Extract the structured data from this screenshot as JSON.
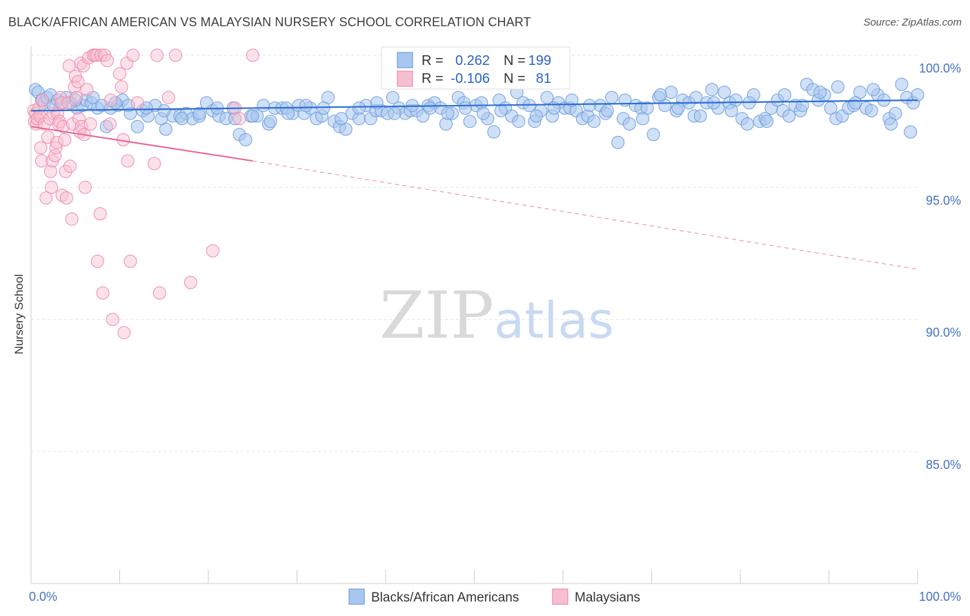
{
  "chart_data": {
    "type": "scatter",
    "title": "BLACK/AFRICAN AMERICAN VS MALAYSIAN NURSERY SCHOOL CORRELATION CHART",
    "source": "Source: ZipAtlas.com",
    "ylabel": "Nursery School",
    "xlabel": "",
    "xlim": [
      0,
      100
    ],
    "ylim": [
      80.0,
      100.8
    ],
    "y_ticks": [
      85.0,
      90.0,
      95.0,
      100.0
    ],
    "y_tick_labels": [
      "85.0%",
      "90.0%",
      "95.0%",
      "100.0%"
    ],
    "x_tick_labels": [
      "0.0%",
      "100.0%"
    ],
    "watermark": {
      "zip": "ZIP",
      "atlas": "atlas"
    },
    "legend": {
      "rows": [
        {
          "r_label": "R =",
          "r_value": "0.262",
          "n_label": "N =",
          "n_value": "199"
        },
        {
          "r_label": "R =",
          "r_value": "-0.106",
          "n_label": "N =",
          "n_value": "81"
        }
      ]
    },
    "series": [
      {
        "name": "Blacks/African Americans",
        "color": "#6f9fe0",
        "fill": "#a9c6ef",
        "line_color": "#2e6fd0",
        "trend": {
          "x": [
            0,
            100
          ],
          "y": [
            97.9,
            98.3
          ]
        },
        "points": [
          [
            0.5,
            98.7
          ],
          [
            0.8,
            98.6
          ],
          [
            1.2,
            98.3
          ],
          [
            1.5,
            98.2
          ],
          [
            1.8,
            98.4
          ],
          [
            2.2,
            98.5
          ],
          [
            2.5,
            98.1
          ],
          [
            3.0,
            98.3
          ],
          [
            3.5,
            98.2
          ],
          [
            4.0,
            98.4
          ],
          [
            4.5,
            98.2
          ],
          [
            5.2,
            98.0
          ],
          [
            5.8,
            98.1
          ],
          [
            6.2,
            98.3
          ],
          [
            6.8,
            98.2
          ],
          [
            7.5,
            98.0
          ],
          [
            8.0,
            98.1
          ],
          [
            8.5,
            97.3
          ],
          [
            9.0,
            98.0
          ],
          [
            9.8,
            98.1
          ],
          [
            10.3,
            98.3
          ],
          [
            11.2,
            97.8
          ],
          [
            12.0,
            97.3
          ],
          [
            12.6,
            97.9
          ],
          [
            13.2,
            97.7
          ],
          [
            14.0,
            98.1
          ],
          [
            14.7,
            97.6
          ],
          [
            15.2,
            97.2
          ],
          [
            16.0,
            97.7
          ],
          [
            16.8,
            97.7
          ],
          [
            17.5,
            97.8
          ],
          [
            18.2,
            97.6
          ],
          [
            19.0,
            97.7
          ],
          [
            19.8,
            98.2
          ],
          [
            20.5,
            97.9
          ],
          [
            21.2,
            97.7
          ],
          [
            22.0,
            97.6
          ],
          [
            22.8,
            98.0
          ],
          [
            23.5,
            97.0
          ],
          [
            24.2,
            96.8
          ],
          [
            24.8,
            97.7
          ],
          [
            25.5,
            97.7
          ],
          [
            26.2,
            98.1
          ],
          [
            26.8,
            97.4
          ],
          [
            27.5,
            98.0
          ],
          [
            28.3,
            98.0
          ],
          [
            28.8,
            98.0
          ],
          [
            29.5,
            97.8
          ],
          [
            30.2,
            98.1
          ],
          [
            30.8,
            97.8
          ],
          [
            31.5,
            98.0
          ],
          [
            32.2,
            97.6
          ],
          [
            32.8,
            97.7
          ],
          [
            33.5,
            98.4
          ],
          [
            34.2,
            97.5
          ],
          [
            34.8,
            97.3
          ],
          [
            35.5,
            97.2
          ],
          [
            36.2,
            97.8
          ],
          [
            37.0,
            97.6
          ],
          [
            37.8,
            98.1
          ],
          [
            38.3,
            97.6
          ],
          [
            38.9,
            97.9
          ],
          [
            39.5,
            97.9
          ],
          [
            40.2,
            97.8
          ],
          [
            40.8,
            98.4
          ],
          [
            41.5,
            98.0
          ],
          [
            42.2,
            97.8
          ],
          [
            42.8,
            97.9
          ],
          [
            43.5,
            97.9
          ],
          [
            44.2,
            97.7
          ],
          [
            44.8,
            98.1
          ],
          [
            45.5,
            98.2
          ],
          [
            46.2,
            98.0
          ],
          [
            46.8,
            97.4
          ],
          [
            47.5,
            97.8
          ],
          [
            48.2,
            98.4
          ],
          [
            48.8,
            98.2
          ],
          [
            49.5,
            97.5
          ],
          [
            50.2,
            98.1
          ],
          [
            50.8,
            98.2
          ],
          [
            51.5,
            97.6
          ],
          [
            52.2,
            97.1
          ],
          [
            52.8,
            98.3
          ],
          [
            53.5,
            98.0
          ],
          [
            54.2,
            97.7
          ],
          [
            54.8,
            98.6
          ],
          [
            55.5,
            98.2
          ],
          [
            56.2,
            98.1
          ],
          [
            56.8,
            97.5
          ],
          [
            57.5,
            97.9
          ],
          [
            58.2,
            98.4
          ],
          [
            58.8,
            97.7
          ],
          [
            59.5,
            98.2
          ],
          [
            60.2,
            98.0
          ],
          [
            60.8,
            98.0
          ],
          [
            61.5,
            97.9
          ],
          [
            62.2,
            97.6
          ],
          [
            62.8,
            97.7
          ],
          [
            63.5,
            97.5
          ],
          [
            64.2,
            98.1
          ],
          [
            64.8,
            97.8
          ],
          [
            65.5,
            98.4
          ],
          [
            66.2,
            96.7
          ],
          [
            66.8,
            97.6
          ],
          [
            67.5,
            97.4
          ],
          [
            68.2,
            98.1
          ],
          [
            68.8,
            98.0
          ],
          [
            69.5,
            98.0
          ],
          [
            70.2,
            97.0
          ],
          [
            70.8,
            98.4
          ],
          [
            71.5,
            98.1
          ],
          [
            72.2,
            98.6
          ],
          [
            72.8,
            97.9
          ],
          [
            73.5,
            98.3
          ],
          [
            74.2,
            98.2
          ],
          [
            74.8,
            97.7
          ],
          [
            75.5,
            97.7
          ],
          [
            76.2,
            98.2
          ],
          [
            76.8,
            98.7
          ],
          [
            77.5,
            98.0
          ],
          [
            78.2,
            98.6
          ],
          [
            78.8,
            98.2
          ],
          [
            79.5,
            98.3
          ],
          [
            80.2,
            97.6
          ],
          [
            80.8,
            97.4
          ],
          [
            81.5,
            98.5
          ],
          [
            82.2,
            97.5
          ],
          [
            82.8,
            97.6
          ],
          [
            83.5,
            98.0
          ],
          [
            84.2,
            98.3
          ],
          [
            84.8,
            97.9
          ],
          [
            85.5,
            97.7
          ],
          [
            86.2,
            98.1
          ],
          [
            86.8,
            97.9
          ],
          [
            87.5,
            98.9
          ],
          [
            88.2,
            98.7
          ],
          [
            88.8,
            98.3
          ],
          [
            89.5,
            98.5
          ],
          [
            90.2,
            98.0
          ],
          [
            90.8,
            97.6
          ],
          [
            91.5,
            97.7
          ],
          [
            92.2,
            98.0
          ],
          [
            92.8,
            98.1
          ],
          [
            93.5,
            98.6
          ],
          [
            94.2,
            98.0
          ],
          [
            94.8,
            97.9
          ],
          [
            95.5,
            98.5
          ],
          [
            96.2,
            98.3
          ],
          [
            96.8,
            97.6
          ],
          [
            97.5,
            97.8
          ],
          [
            98.2,
            98.9
          ],
          [
            98.8,
            98.4
          ],
          [
            99.5,
            98.2
          ],
          [
            100.0,
            98.5
          ],
          [
            99.2,
            97.1
          ],
          [
            97.0,
            97.4
          ],
          [
            95.0,
            98.7
          ],
          [
            93.0,
            98.2
          ],
          [
            91.0,
            98.8
          ],
          [
            89.0,
            98.6
          ],
          [
            87.0,
            98.1
          ],
          [
            85.0,
            98.5
          ],
          [
            83.0,
            97.5
          ],
          [
            81.0,
            98.2
          ],
          [
            79.0,
            97.9
          ],
          [
            77.0,
            98.2
          ],
          [
            75.0,
            98.4
          ],
          [
            73.0,
            98.0
          ],
          [
            71.0,
            98.5
          ],
          [
            69.0,
            97.6
          ],
          [
            67.0,
            98.3
          ],
          [
            65.0,
            97.9
          ],
          [
            63.0,
            98.1
          ],
          [
            61.0,
            98.3
          ],
          [
            59.0,
            98.0
          ],
          [
            57.0,
            97.7
          ],
          [
            55.0,
            97.5
          ],
          [
            53.0,
            97.9
          ],
          [
            51.0,
            97.8
          ],
          [
            49.0,
            98.0
          ],
          [
            47.0,
            97.8
          ],
          [
            45.0,
            98.0
          ],
          [
            43.0,
            98.1
          ],
          [
            41.0,
            97.8
          ],
          [
            39.0,
            98.2
          ],
          [
            37.0,
            98.0
          ],
          [
            35.0,
            97.6
          ],
          [
            33.0,
            98.0
          ],
          [
            31.0,
            98.1
          ],
          [
            29.0,
            97.8
          ],
          [
            27.0,
            97.5
          ],
          [
            25.0,
            97.7
          ],
          [
            23.0,
            97.6
          ],
          [
            21.0,
            98.0
          ],
          [
            19.0,
            97.8
          ],
          [
            17.0,
            97.6
          ],
          [
            15.0,
            97.9
          ],
          [
            13.0,
            98.0
          ],
          [
            11.0,
            98.1
          ],
          [
            9.5,
            98.2
          ],
          [
            7.0,
            98.4
          ],
          [
            5.0,
            98.3
          ]
        ]
      },
      {
        "name": "Malaysians",
        "color": "#f08aab",
        "fill": "#f6bfd0",
        "line_color": "#e8648f",
        "trend": {
          "x": [
            0,
            25,
            100
          ],
          "y": [
            97.3,
            96.0,
            91.9
          ]
        },
        "trend_solid_to_x": 25,
        "points": [
          [
            0.3,
            97.9
          ],
          [
            0.4,
            97.5
          ],
          [
            0.5,
            97.8
          ],
          [
            0.6,
            97.4
          ],
          [
            0.7,
            97.6
          ],
          [
            0.9,
            98.0
          ],
          [
            1.0,
            97.7
          ],
          [
            1.1,
            96.5
          ],
          [
            1.2,
            96.0
          ],
          [
            1.3,
            98.3
          ],
          [
            1.5,
            97.4
          ],
          [
            1.7,
            94.6
          ],
          [
            1.9,
            96.9
          ],
          [
            2.1,
            97.6
          ],
          [
            2.2,
            95.6
          ],
          [
            2.3,
            95.0
          ],
          [
            2.4,
            96.0
          ],
          [
            2.5,
            97.8
          ],
          [
            2.7,
            96.2
          ],
          [
            2.8,
            96.5
          ],
          [
            2.9,
            96.7
          ],
          [
            3.0,
            97.8
          ],
          [
            3.1,
            97.4
          ],
          [
            3.2,
            97.5
          ],
          [
            3.3,
            98.4
          ],
          [
            3.4,
            98.2
          ],
          [
            3.5,
            94.7
          ],
          [
            3.6,
            97.3
          ],
          [
            3.8,
            96.8
          ],
          [
            3.9,
            95.6
          ],
          [
            4.0,
            94.6
          ],
          [
            4.2,
            98.2
          ],
          [
            4.3,
            99.6
          ],
          [
            4.4,
            95.8
          ],
          [
            4.6,
            93.8
          ],
          [
            4.7,
            97.4
          ],
          [
            4.9,
            98.8
          ],
          [
            5.0,
            99.2
          ],
          [
            5.1,
            98.4
          ],
          [
            5.3,
            99.0
          ],
          [
            5.4,
            97.6
          ],
          [
            5.5,
            97.1
          ],
          [
            5.6,
            99.7
          ],
          [
            5.7,
            97.3
          ],
          [
            5.9,
            99.6
          ],
          [
            6.0,
            97.0
          ],
          [
            6.1,
            95.0
          ],
          [
            6.3,
            98.7
          ],
          [
            6.5,
            99.9
          ],
          [
            6.7,
            97.4
          ],
          [
            7.0,
            100.0
          ],
          [
            7.2,
            100.0
          ],
          [
            7.4,
            100.0
          ],
          [
            7.5,
            92.2
          ],
          [
            7.8,
            94.0
          ],
          [
            7.9,
            100.0
          ],
          [
            8.1,
            91.0
          ],
          [
            8.3,
            100.0
          ],
          [
            8.6,
            99.8
          ],
          [
            8.9,
            97.4
          ],
          [
            9.0,
            98.3
          ],
          [
            9.2,
            90.0
          ],
          [
            10.0,
            99.3
          ],
          [
            10.2,
            98.8
          ],
          [
            10.4,
            96.8
          ],
          [
            10.5,
            89.5
          ],
          [
            10.8,
            99.7
          ],
          [
            10.9,
            96.0
          ],
          [
            11.2,
            92.2
          ],
          [
            11.5,
            100.0
          ],
          [
            12.0,
            98.2
          ],
          [
            13.9,
            95.9
          ],
          [
            14.2,
            100.0
          ],
          [
            14.5,
            91.0
          ],
          [
            15.5,
            98.4
          ],
          [
            16.3,
            100.0
          ],
          [
            18.0,
            91.4
          ],
          [
            20.5,
            92.6
          ],
          [
            23.0,
            98.0
          ],
          [
            23.5,
            97.6
          ],
          [
            25.0,
            100.0
          ]
        ]
      }
    ]
  }
}
